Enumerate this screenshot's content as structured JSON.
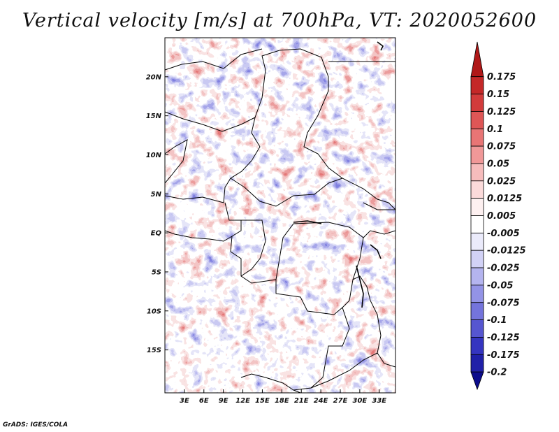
{
  "title": "Vertical velocity [m/s] at 700hPa, VT: 2020052600",
  "credit": "GrADS: IGES/COLA",
  "map": {
    "lon_range": [
      0,
      35.5
    ],
    "lat_range": [
      -20.5,
      25
    ],
    "lon_ticks": [
      {
        "value": 3,
        "label": "3E"
      },
      {
        "value": 6,
        "label": "6E"
      },
      {
        "value": 9,
        "label": "9E"
      },
      {
        "value": 12,
        "label": "12E"
      },
      {
        "value": 15,
        "label": "15E"
      },
      {
        "value": 18,
        "label": "18E"
      },
      {
        "value": 21,
        "label": "21E"
      },
      {
        "value": 24,
        "label": "24E"
      },
      {
        "value": 27,
        "label": "27E"
      },
      {
        "value": 30,
        "label": "30E"
      },
      {
        "value": 33,
        "label": "33E"
      }
    ],
    "lat_ticks": [
      {
        "value": 20,
        "label": "20N"
      },
      {
        "value": 15,
        "label": "15N"
      },
      {
        "value": 10,
        "label": "10N"
      },
      {
        "value": 5,
        "label": "5N"
      },
      {
        "value": 0,
        "label": "EQ"
      },
      {
        "value": -5,
        "label": "5S"
      },
      {
        "value": -10,
        "label": "10S"
      },
      {
        "value": -15,
        "label": "15S"
      }
    ]
  },
  "colorbar": {
    "levels": [
      "0.175",
      "0.15",
      "0.125",
      "0.1",
      "0.075",
      "0.05",
      "0.025",
      "0.0125",
      "0.005",
      "-0.005",
      "-0.0125",
      "-0.025",
      "-0.05",
      "-0.075",
      "-0.1",
      "-0.125",
      "-0.175",
      "-0.2"
    ],
    "colors": [
      "#b01818",
      "#c42828",
      "#d23b3b",
      "#de5656",
      "#e87575",
      "#f09898",
      "#f6bcbc",
      "#fbdada",
      "#fdf0f0",
      "#ffffff",
      "#ebebfb",
      "#d2d2f6",
      "#b4b4ef",
      "#9393e6",
      "#7474dc",
      "#5656d0",
      "#3535c0",
      "#2020a8",
      "#0c0c8c"
    ]
  }
}
